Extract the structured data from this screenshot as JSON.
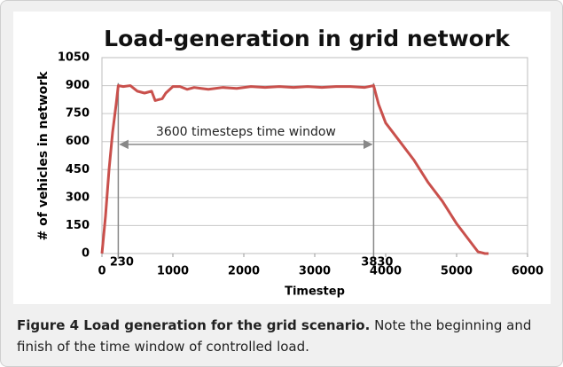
{
  "chart_data": {
    "type": "line",
    "title": "Load-generation in grid network",
    "x_label": "Timestep",
    "y_label": "# of vehicles in network",
    "xlim": [
      0,
      6000
    ],
    "xticks": [
      0,
      1000,
      2000,
      3000,
      4000,
      5000,
      6000
    ],
    "ylim": [
      0,
      1050
    ],
    "yticks": [
      0,
      150,
      300,
      450,
      600,
      750,
      900,
      1050
    ],
    "grid": true,
    "series": [
      {
        "color": "#c9504c",
        "x": [
          0,
          50,
          100,
          150,
          200,
          230,
          300,
          400,
          500,
          600,
          700,
          750,
          850,
          900,
          1000,
          1100,
          1200,
          1300,
          1400,
          1500,
          1700,
          1900,
          2100,
          2300,
          2500,
          2700,
          2900,
          3100,
          3300,
          3500,
          3700,
          3830,
          3900,
          4000,
          4200,
          4400,
          4600,
          4800,
          5000,
          5200,
          5300,
          5400,
          5450
        ],
        "values": [
          0,
          200,
          450,
          650,
          800,
          900,
          895,
          900,
          870,
          860,
          870,
          820,
          830,
          860,
          895,
          895,
          880,
          890,
          885,
          880,
          890,
          885,
          895,
          890,
          895,
          890,
          895,
          890,
          895,
          895,
          890,
          900,
          800,
          700,
          600,
          500,
          380,
          280,
          160,
          60,
          10,
          0,
          0
        ]
      }
    ],
    "markers": [
      230,
      3830
    ],
    "annotation": {
      "text": "3600 timesteps time window",
      "y": 585
    }
  },
  "caption": {
    "label": "Figure 4 Load generation for the grid scenario.",
    "text": "Note the beginning and finish of the time window of controlled load."
  }
}
